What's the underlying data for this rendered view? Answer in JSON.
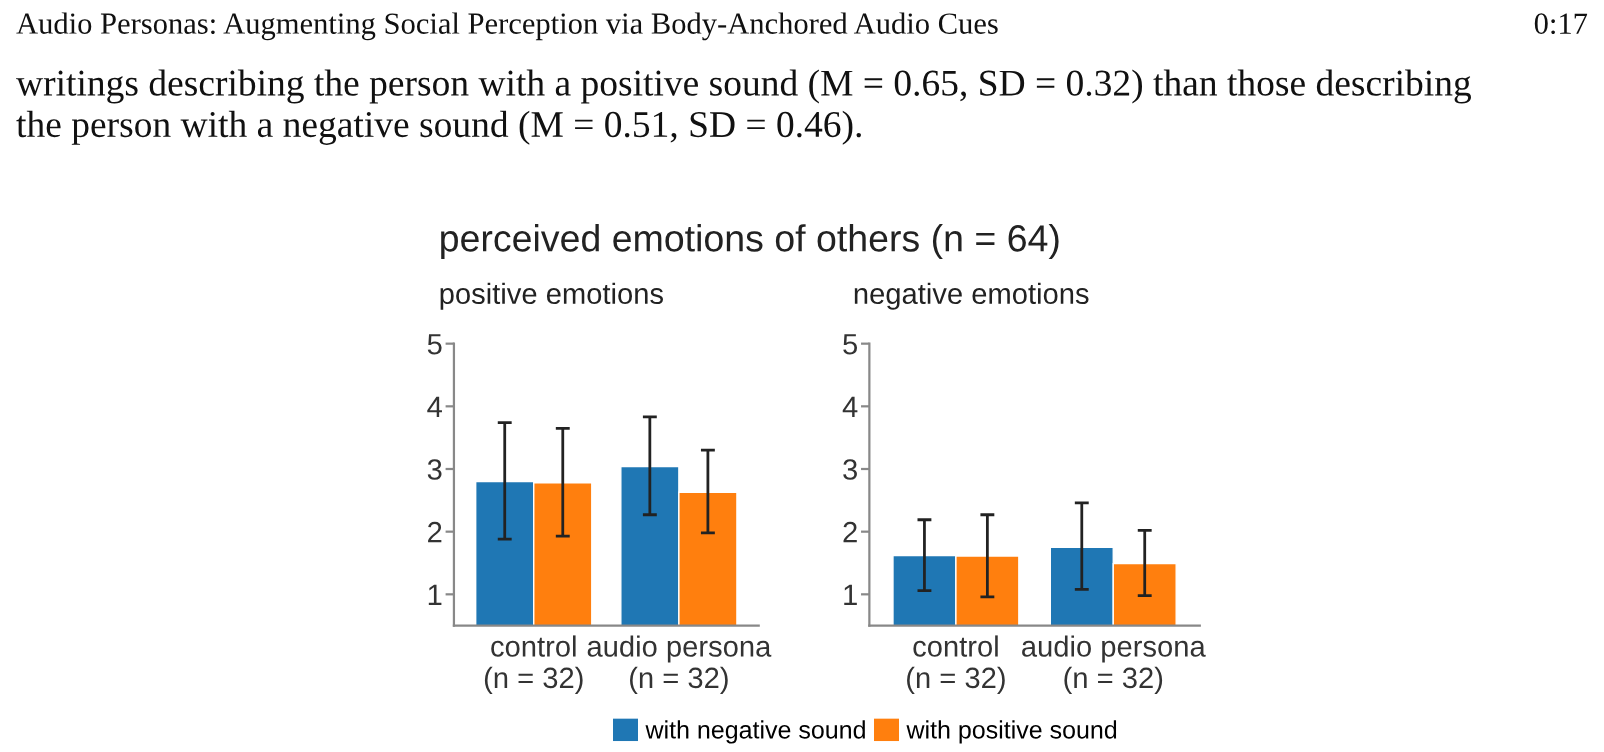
{
  "chart_data": [
    {
      "type": "bar",
      "title": "perceived emotions of others (n = 64)",
      "subtitle": "positive emotions",
      "categories": [
        "control\n(n = 32)",
        "audio persona\n(n = 32)"
      ],
      "series": [
        {
          "name": "with negative sound",
          "color": "#1f77b4",
          "values": [
            2.8,
            3.04
          ],
          "errors": [
            [
              1.88,
              3.74
            ],
            [
              2.27,
              3.83
            ]
          ]
        },
        {
          "name": "with positive sound",
          "color": "#ff7f0e",
          "values": [
            2.78,
            2.63
          ],
          "errors": [
            [
              1.93,
              3.65
            ],
            [
              1.98,
              3.3
            ]
          ]
        }
      ],
      "ylim": [
        0.5,
        5
      ],
      "yticks": [
        1,
        2,
        3,
        4,
        5
      ],
      "grid": false,
      "legend": "bottom",
      "annotations": [
        "Audio Personas: Augmenting Social Perception via Body-Anchored Audio Cues",
        "0:17",
        "writings describing the person with a positive sound (M = 0.65, SD = 0.32) than those describing",
        "the person with a negative sound (M = 0.51, SD = 0.46)."
      ]
    },
    {
      "type": "bar",
      "subtitle": "negative emotions",
      "categories": [
        "control\n(n = 32)",
        "audio persona\n(n = 32)"
      ],
      "series": [
        {
          "name": "with negative sound",
          "color": "#1f77b4",
          "values": [
            1.62,
            1.75
          ],
          "errors": [
            [
              1.06,
              2.19
            ],
            [
              1.08,
              2.46
            ]
          ]
        },
        {
          "name": "with positive sound",
          "color": "#ff7f0e",
          "values": [
            1.61,
            1.49
          ],
          "errors": [
            [
              0.96,
              2.27
            ],
            [
              0.98,
              2.02
            ]
          ]
        }
      ],
      "ylim": [
        0.5,
        5
      ],
      "yticks": [
        1,
        2,
        3,
        4,
        5
      ],
      "grid": false,
      "legend": "bottom"
    }
  ]
}
